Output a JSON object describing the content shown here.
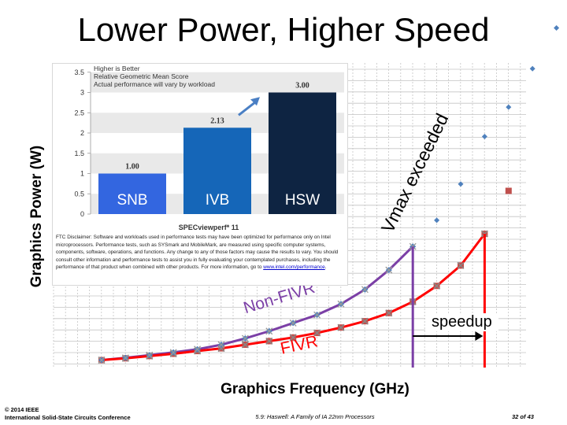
{
  "title": "Lower Power, Higher Speed",
  "footer": {
    "copyright": "© 2014 IEEE",
    "conference": "International Solid-State Circuits Conference",
    "paper": "5.9: Haswell: A Family of IA 22nm Processors",
    "page": "32 of 43"
  },
  "annotations": {
    "vmax": "Vmax exceeded",
    "non_fivr": "Non-FIVR",
    "fivr": "FIVR",
    "speedup": "speedup"
  },
  "inset": {
    "legend_lines": [
      "Higher is Better",
      "Relative Geometric Mean Score",
      "Actual performance will vary by workload"
    ],
    "benchmark": "SPECviewperf* 11",
    "disclaimer": "FTC Disclaimer: Software and workloads used in performance tests may have been optimized for performance only on Intel microprocessors. Performance tests, such as SYSmark and MobileMark, are measured using specific computer systems, components, software, operations, and functions. Any change to any of those factors may cause the results to vary. You should consult other information and performance tests to assist you in fully evaluating your contemplated purchases, including the performance of that product when combined with other products. For more information, go to",
    "disclaimer_link": "www.intel.com/performance",
    "disclaimer_end": "."
  },
  "colors": {
    "fivr": "#ff0000",
    "fivr_marker": "#c0504d",
    "non_fivr": "#7b3fa6",
    "non_fivr_marker": "#4f81bd",
    "snb": "#3366e0",
    "ivb": "#1566b8",
    "hsw": "#0e2442",
    "arrow": "#4a7fc4"
  },
  "chart_data": [
    {
      "type": "line",
      "xlabel": "Graphics Frequency (GHz)",
      "ylabel": "Graphics Power (W)",
      "series": [
        {
          "name": "FIVR",
          "x": [
            1,
            2,
            3,
            4,
            5,
            6,
            7,
            8,
            9,
            10,
            11,
            12,
            13,
            14,
            15,
            16,
            17
          ],
          "y": [
            0.6,
            1.0,
            1.5,
            2.0,
            2.6,
            3.2,
            4.0,
            4.8,
            5.6,
            6.6,
            7.8,
            9.2,
            11.0,
            13.5,
            17.0,
            21.5,
            28.5
          ]
        },
        {
          "name": "Non-FIVR",
          "x": [
            1,
            2,
            3,
            4,
            5,
            6,
            7,
            8,
            9,
            10,
            11,
            12,
            13,
            14
          ],
          "y": [
            0.6,
            1.1,
            1.7,
            2.3,
            3.0,
            4.0,
            5.4,
            7.0,
            8.8,
            10.6,
            13.0,
            16.2,
            20.5,
            25.7
          ]
        },
        {
          "name": "FIVR beyond Vmax",
          "x": [
            18
          ],
          "y": [
            38.0
          ]
        },
        {
          "name": "Non-FIVR beyond Vmax",
          "x": [
            15,
            16,
            17,
            18,
            19,
            20
          ],
          "y": [
            31.5,
            39.5,
            50.0,
            56.5,
            65.0,
            74.0
          ]
        }
      ]
    },
    {
      "type": "bar",
      "title": "SPECviewperf* 11",
      "categories": [
        "SNB",
        "IVB",
        "HSW"
      ],
      "values": [
        1.0,
        2.13,
        3.0
      ],
      "value_labels": [
        "1.00",
        "2.13",
        "3.00"
      ],
      "ylim": [
        0,
        3.5
      ],
      "yticks": [
        "0",
        "0.5",
        "1",
        "1.5",
        "2",
        "2.5",
        "3",
        "3.5"
      ]
    }
  ]
}
